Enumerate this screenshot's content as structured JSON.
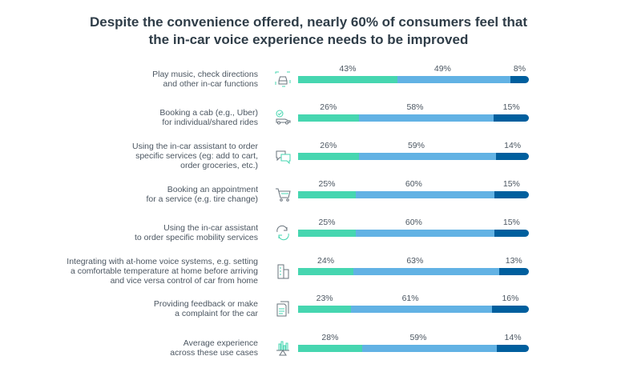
{
  "chart_data": {
    "type": "bar",
    "orientation": "horizontal",
    "stacked": true,
    "title": "Despite the convenience offered, nearly 60% of consumers feel that the in-car voice experience needs to be improved",
    "title_lines": [
      "Despite the convenience offered, nearly 60% of consumers feel that",
      "the in-car voice experience needs to be improved"
    ],
    "legend": "none",
    "grid": false,
    "colors": [
      "#46d6b0",
      "#62b2e4",
      "#005f9e"
    ],
    "categories": [
      {
        "lines": [
          "Play music, check directions",
          "and other in-car functions"
        ],
        "icon": "car-icon",
        "values": [
          43,
          49,
          8
        ]
      },
      {
        "lines": [
          "Booking a cab (e.g., Uber)",
          "for individual/shared rides"
        ],
        "icon": "cab-check-icon",
        "values": [
          26,
          58,
          15
        ]
      },
      {
        "lines": [
          "Using the in-car assistant to order",
          "specific services (eg: add to cart,",
          "order groceries, etc.)"
        ],
        "icon": "chat-bubbles-icon",
        "values": [
          26,
          59,
          14
        ]
      },
      {
        "lines": [
          "Booking an appointment",
          "for a service (e.g. tire change)"
        ],
        "icon": "shopping-cart-icon",
        "values": [
          25,
          60,
          15
        ]
      },
      {
        "lines": [
          "Using the in-car assistant",
          "to order specific mobility services"
        ],
        "icon": "cycle-arrows-icon",
        "values": [
          25,
          60,
          15
        ]
      },
      {
        "lines": [
          "Integrating with at-home voice systems, e.g. setting",
          "a comfortable temperature at home before arriving",
          "and vice versa control of car from home"
        ],
        "icon": "building-icon",
        "values": [
          24,
          63,
          13
        ]
      },
      {
        "lines": [
          "Providing feedback or make",
          "a complaint for the car"
        ],
        "icon": "documents-icon",
        "values": [
          23,
          61,
          16
        ]
      },
      {
        "lines": [
          "Average experience",
          "across these use cases"
        ],
        "icon": "bar-chart-scale-icon",
        "values": [
          28,
          59,
          14
        ]
      }
    ],
    "value_suffix": "%"
  }
}
